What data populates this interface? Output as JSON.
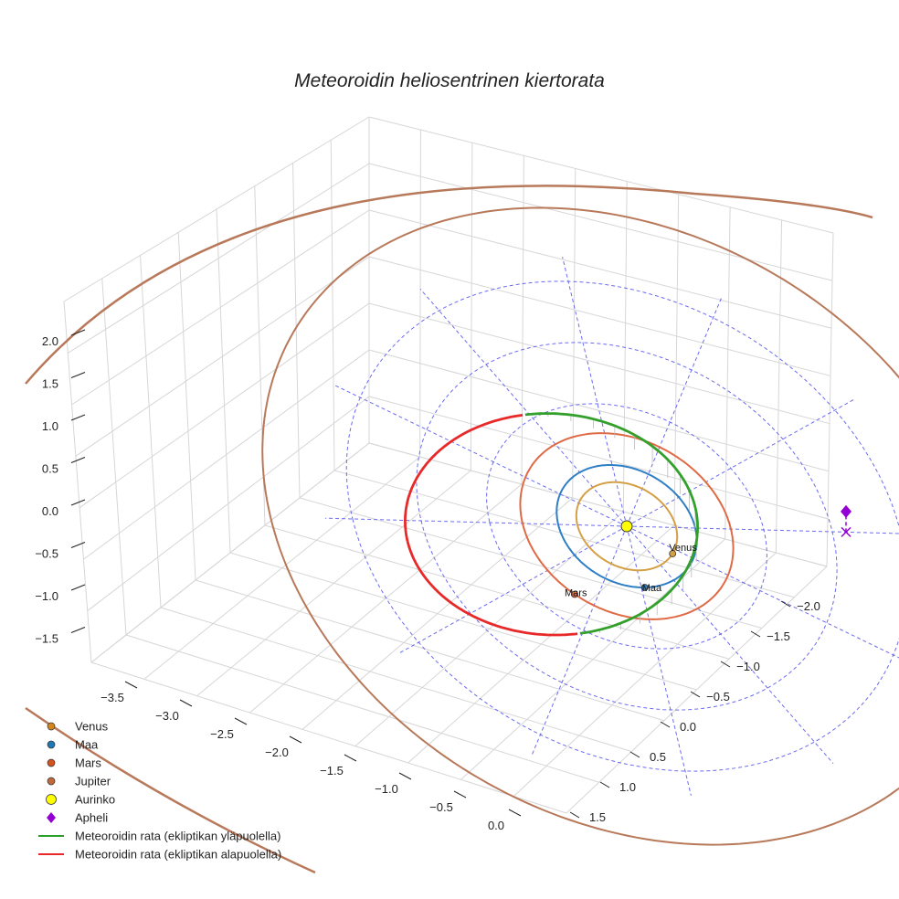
{
  "chart_data": {
    "type": "line-3d",
    "title": "Meteoroidin heliosentrinen kiertorata",
    "z_ticks": [
      "2.0",
      "1.5",
      "1.0",
      "0.5",
      "0.0",
      "−0.5",
      "−1.0",
      "−1.5"
    ],
    "x_ticks": [
      "−3.5",
      "−3.0",
      "−2.5",
      "−2.0",
      "−1.5",
      "−1.0",
      "−0.5",
      "0.0"
    ],
    "y_ticks": [
      "−2.0",
      "−1.5",
      "−1.0",
      "−0.5",
      "0.0",
      "0.5",
      "1.0",
      "1.5"
    ],
    "x_range": [
      -3.6,
      0.2
    ],
    "y_range": [
      -2.2,
      1.7
    ],
    "z_range": [
      -1.6,
      2.0
    ],
    "planets": [
      {
        "name": "Venus",
        "label": "Venus",
        "orbit_radius_au": 0.72,
        "color": "#d4a046"
      },
      {
        "name": "Maa",
        "label": "Maa",
        "orbit_radius_au": 1.0,
        "color": "#2f7fc6"
      },
      {
        "name": "Mars",
        "label": "Mars",
        "orbit_radius_au": 1.52,
        "color": "#e06a45"
      },
      {
        "name": "Jupiter",
        "label": "",
        "orbit_radius_au": 5.2,
        "color": "#b8795a"
      }
    ],
    "sun": {
      "name": "Aurinko",
      "color": "#ffff00"
    },
    "aphelion": {
      "name": "Apheli",
      "color": "#9400d3",
      "distance_au": 3.2,
      "z_au": 0.6
    },
    "meteoroid": {
      "perihelion_au": 1.0,
      "aphelion_au": 3.2,
      "above_color": "#33a02c",
      "below_color": "#e8292a",
      "above_label": "Meteoroidin rata (ekliptikan yläpuolella)",
      "below_label": "Meteoroidin rata (ekliptikan alapuolella)"
    },
    "ecliptic_grid_radii_au": [
      1,
      2,
      3,
      4
    ],
    "legend": [
      {
        "label": "Venus",
        "color": "#d4861e",
        "marker": "circle"
      },
      {
        "label": "Maa",
        "color": "#1f77b4",
        "marker": "circle"
      },
      {
        "label": "Mars",
        "color": "#d4521e",
        "marker": "circle"
      },
      {
        "label": "Jupiter",
        "color": "#c0693a",
        "marker": "circle"
      },
      {
        "label": "Aurinko",
        "color": "#ffff00",
        "marker": "sun"
      },
      {
        "label": "Apheli",
        "color": "#9400d3",
        "marker": "diamond"
      },
      {
        "label": "Meteoroidin rata (ekliptikan yläpuolella)",
        "color": "#2ca02c",
        "marker": "line"
      },
      {
        "label": "Meteoroidin rata (ekliptikan alapuolella)",
        "color": "#e8292a",
        "marker": "line"
      }
    ]
  }
}
